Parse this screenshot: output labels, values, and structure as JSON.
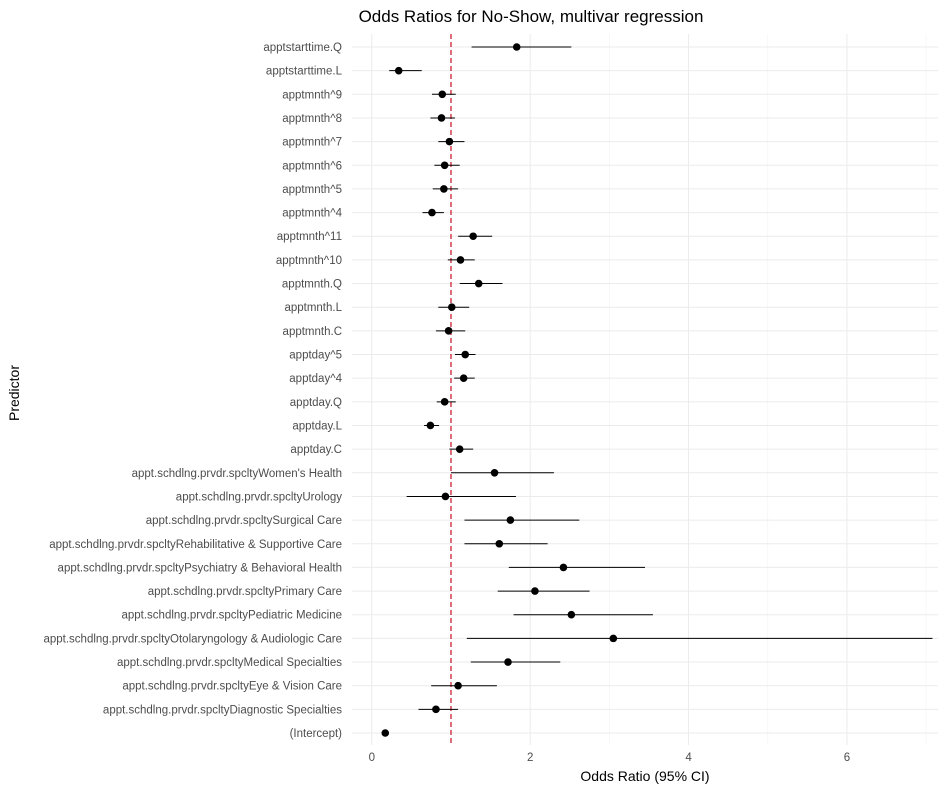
{
  "chart_data": {
    "type": "forest",
    "title": "Odds Ratios for No-Show, multivar regression",
    "xlabel": "Odds Ratio (95% CI)",
    "ylabel": "Predictor",
    "xlim": [
      -0.25,
      7.15
    ],
    "x_ticks": [
      0,
      2,
      4,
      6
    ],
    "reference_line": 1,
    "reference_color": "#cc2233",
    "grid": true,
    "predictors": [
      {
        "label": "apptstarttime.Q",
        "or": 1.83,
        "lo": 1.26,
        "hi": 2.52
      },
      {
        "label": "apptstarttime.L",
        "or": 0.34,
        "lo": 0.22,
        "hi": 0.63
      },
      {
        "label": "apptmnth^9",
        "or": 0.89,
        "lo": 0.76,
        "hi": 1.06
      },
      {
        "label": "apptmnth^8",
        "or": 0.88,
        "lo": 0.74,
        "hi": 1.05
      },
      {
        "label": "apptmnth^7",
        "or": 0.98,
        "lo": 0.84,
        "hi": 1.17
      },
      {
        "label": "apptmnth^6",
        "or": 0.92,
        "lo": 0.79,
        "hi": 1.11
      },
      {
        "label": "apptmnth^5",
        "or": 0.91,
        "lo": 0.77,
        "hi": 1.09
      },
      {
        "label": "apptmnth^4",
        "or": 0.76,
        "lo": 0.64,
        "hi": 0.91
      },
      {
        "label": "apptmnth^11",
        "or": 1.28,
        "lo": 1.09,
        "hi": 1.52
      },
      {
        "label": "apptmnth^10",
        "or": 1.12,
        "lo": 0.96,
        "hi": 1.3
      },
      {
        "label": "apptmnth.Q",
        "or": 1.35,
        "lo": 1.11,
        "hi": 1.65
      },
      {
        "label": "apptmnth.L",
        "or": 1.01,
        "lo": 0.84,
        "hi": 1.23
      },
      {
        "label": "apptmnth.C",
        "or": 0.97,
        "lo": 0.81,
        "hi": 1.18
      },
      {
        "label": "apptday^5",
        "or": 1.18,
        "lo": 1.05,
        "hi": 1.31
      },
      {
        "label": "apptday^4",
        "or": 1.16,
        "lo": 1.04,
        "hi": 1.3
      },
      {
        "label": "apptday.Q",
        "or": 0.92,
        "lo": 0.82,
        "hi": 1.06
      },
      {
        "label": "apptday.L",
        "or": 0.74,
        "lo": 0.66,
        "hi": 0.85
      },
      {
        "label": "apptday.C",
        "or": 1.11,
        "lo": 0.98,
        "hi": 1.28
      },
      {
        "label": "appt.schdlng.prvdr.spcltyWomen's Health",
        "or": 1.55,
        "lo": 1.0,
        "hi": 2.3
      },
      {
        "label": "appt.schdlng.prvdr.spcltyUrology",
        "or": 0.93,
        "lo": 0.44,
        "hi": 1.82
      },
      {
        "label": "appt.schdlng.prvdr.spcltySurgical Care",
        "or": 1.75,
        "lo": 1.17,
        "hi": 2.62
      },
      {
        "label": "appt.schdlng.prvdr.spcltyRehabilitative & Supportive Care",
        "or": 1.61,
        "lo": 1.17,
        "hi": 2.22
      },
      {
        "label": "appt.schdlng.prvdr.spcltyPsychiatry & Behavioral Health",
        "or": 2.42,
        "lo": 1.73,
        "hi": 3.45
      },
      {
        "label": "appt.schdlng.prvdr.spcltyPrimary Care",
        "or": 2.06,
        "lo": 1.59,
        "hi": 2.75
      },
      {
        "label": "appt.schdlng.prvdr.spcltyPediatric Medicine",
        "or": 2.52,
        "lo": 1.79,
        "hi": 3.55
      },
      {
        "label": "appt.schdlng.prvdr.spcltyOtolaryngology & Audiologic Care",
        "or": 3.05,
        "lo": 1.2,
        "hi": 7.08
      },
      {
        "label": "appt.schdlng.prvdr.spcltyMedical Specialties",
        "or": 1.72,
        "lo": 1.25,
        "hi": 2.38
      },
      {
        "label": "appt.schdlng.prvdr.spcltyEye & Vision Care",
        "or": 1.09,
        "lo": 0.75,
        "hi": 1.58
      },
      {
        "label": "appt.schdlng.prvdr.spcltyDiagnostic Specialties",
        "or": 0.81,
        "lo": 0.59,
        "hi": 1.09
      },
      {
        "label": "(Intercept)",
        "or": 0.17,
        "lo": 0.15,
        "hi": 0.19
      }
    ]
  }
}
